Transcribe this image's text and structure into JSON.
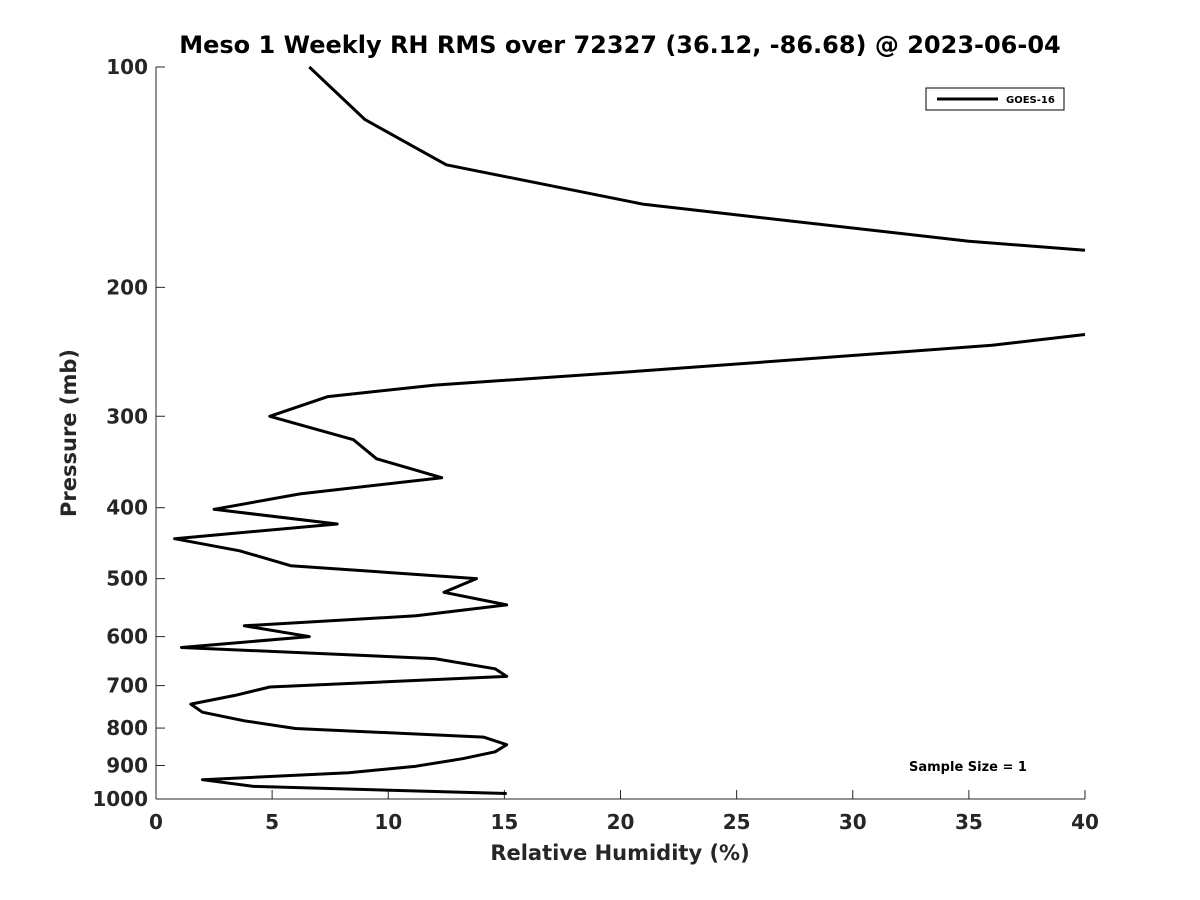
{
  "colors": {
    "line": "#000000",
    "axis": "#262626",
    "background": "#ffffff"
  },
  "chart_data": {
    "type": "line",
    "title": "Meso 1 Weekly RH RMS over 72327 (36.12, -86.68) @ 2023-06-04",
    "xlabel": "Relative Humidity (%)",
    "ylabel": "Pressure (mb)",
    "xlim": [
      0,
      40
    ],
    "ylim": [
      100,
      1000
    ],
    "yscale": "log",
    "yreversed": true,
    "x_ticks": [
      "0",
      "5",
      "10",
      "15",
      "20",
      "25",
      "30",
      "35",
      "40"
    ],
    "y_ticks": [
      "100",
      "200",
      "300",
      "400",
      "500",
      "600",
      "700",
      "800",
      "900",
      "1000"
    ],
    "grid": false,
    "legend_position": "top-right",
    "note": "Sample Size = 1",
    "series": [
      {
        "name": "GOES-16",
        "points": [
          [
            6.6,
            100
          ],
          [
            9.0,
            118
          ],
          [
            12.5,
            136
          ],
          [
            21.0,
            154
          ],
          [
            35.0,
            173
          ],
          [
            40.0,
            178
          ],
          [
            null,
            null
          ],
          [
            40.0,
            232
          ],
          [
            36.0,
            240
          ],
          [
            21.0,
            260
          ],
          [
            12.0,
            272
          ],
          [
            7.4,
            282
          ],
          [
            4.9,
            300
          ],
          [
            8.5,
            323
          ],
          [
            9.5,
            343
          ],
          [
            12.3,
            364
          ],
          [
            6.2,
            383
          ],
          [
            2.5,
            402
          ],
          [
            7.8,
            421
          ],
          [
            0.8,
            441
          ],
          [
            3.6,
            458
          ],
          [
            5.8,
            480
          ],
          [
            13.8,
            500
          ],
          [
            12.4,
            522
          ],
          [
            15.1,
            543
          ],
          [
            11.2,
            562
          ],
          [
            3.8,
            580
          ],
          [
            6.6,
            600
          ],
          [
            1.1,
            621
          ],
          [
            12.0,
            643
          ],
          [
            14.6,
            664
          ],
          [
            15.1,
            680
          ],
          [
            4.9,
            703
          ],
          [
            3.4,
            722
          ],
          [
            1.5,
            742
          ],
          [
            2.0,
            761
          ],
          [
            3.8,
            782
          ],
          [
            6.0,
            801
          ],
          [
            14.1,
            823
          ],
          [
            15.1,
            843
          ],
          [
            14.6,
            862
          ],
          [
            13.2,
            881
          ],
          [
            11.2,
            902
          ],
          [
            8.3,
            921
          ],
          [
            2.0,
            941
          ],
          [
            4.2,
            961
          ],
          [
            15.1,
            983
          ]
        ]
      }
    ]
  }
}
